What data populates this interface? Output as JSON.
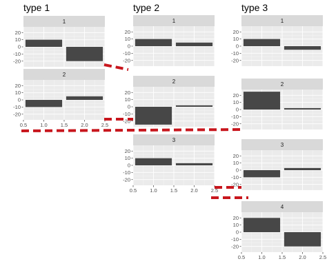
{
  "chart_data": {
    "type": "bar",
    "groups": [
      {
        "title": "type 1",
        "panels": [
          {
            "label": "1",
            "categories": [
              1,
              2
            ],
            "values": [
              10,
              -20
            ]
          },
          {
            "label": "2",
            "categories": [
              1,
              2
            ],
            "values": [
              -10,
              5
            ]
          }
        ]
      },
      {
        "title": "type 2",
        "panels": [
          {
            "label": "1",
            "categories": [
              1,
              2
            ],
            "values": [
              10,
              5
            ]
          },
          {
            "label": "2",
            "categories": [
              1,
              2
            ],
            "values": [
              -25,
              2
            ]
          },
          {
            "label": "3",
            "categories": [
              1,
              2
            ],
            "values": [
              10,
              3
            ]
          }
        ]
      },
      {
        "title": "type 3",
        "panels": [
          {
            "label": "1",
            "categories": [
              1,
              2
            ],
            "values": [
              10,
              -5
            ]
          },
          {
            "label": "2",
            "categories": [
              1,
              2
            ],
            "values": [
              25,
              2
            ]
          },
          {
            "label": "3",
            "categories": [
              1,
              2
            ],
            "values": [
              -10,
              3
            ]
          },
          {
            "label": "4",
            "categories": [
              1,
              2
            ],
            "values": [
              20,
              -20
            ]
          }
        ]
      }
    ],
    "xlim": [
      0.5,
      2.5
    ],
    "x_ticks": [
      "0.5",
      "1.0",
      "1.5",
      "2.0",
      "2.5"
    ],
    "ylim": [
      -28,
      28
    ],
    "y_ticks": [
      "20",
      "10",
      "0",
      "-10",
      "-20"
    ],
    "grid": true,
    "annotations": "red dashed connector lines between facet grids"
  },
  "colors": {
    "bar": "#474747",
    "panel_background": "#ebebeb",
    "strip_background": "#d9d9d9",
    "connector": "#c8161d"
  }
}
